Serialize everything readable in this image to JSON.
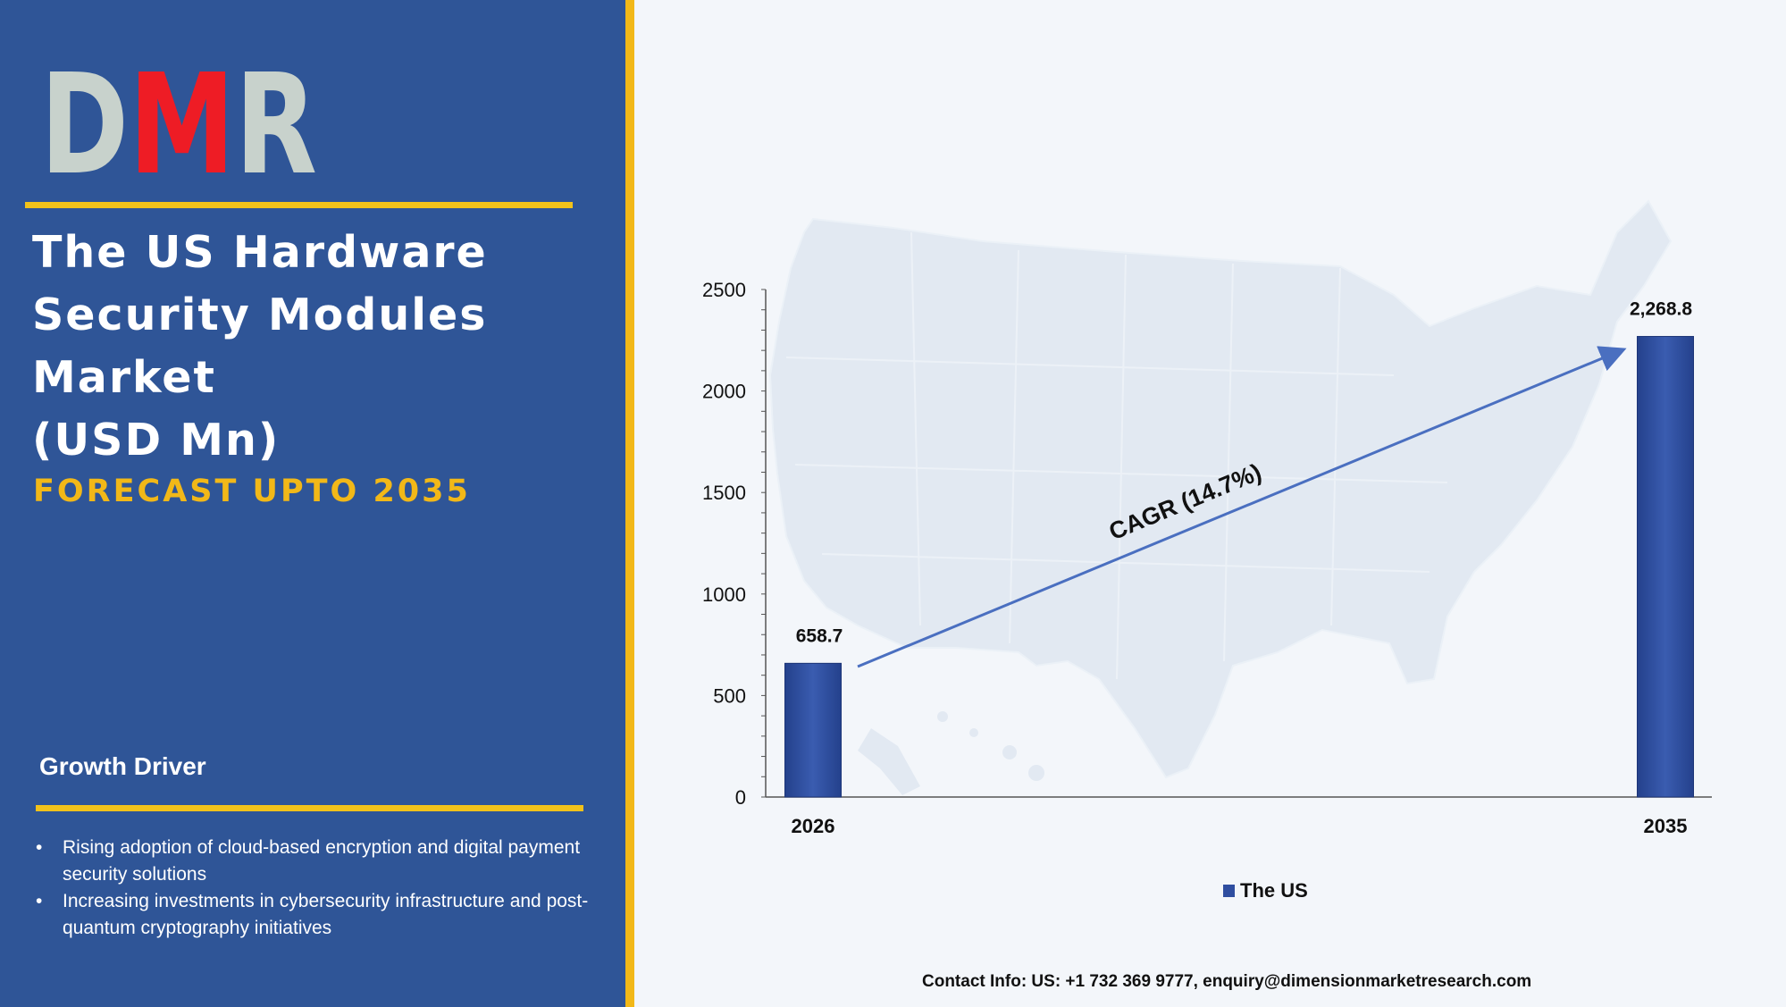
{
  "brand": {
    "logo_text": "DMR",
    "colors": {
      "red": "#ee1c25",
      "grey": "#c8d2cc",
      "gold": "#f2b818",
      "panel": "#2f5597",
      "bar": "#2f4ea0"
    }
  },
  "title": {
    "lines": [
      "The US Hardware",
      "Security Modules",
      "Market",
      "(USD Mn)"
    ],
    "subtitle": "FORECAST UPTO 2035"
  },
  "growth_driver": {
    "heading": "Growth Driver",
    "items": [
      "Rising adoption of cloud-based encryption and digital payment security solutions",
      "Increasing investments in cybersecurity infrastructure and post-quantum cryptography initiatives"
    ]
  },
  "chart_data": {
    "type": "bar",
    "categories": [
      "2026",
      "2035"
    ],
    "series": [
      {
        "name": "The US",
        "values": [
          658.7,
          2268.8
        ],
        "labels": [
          "658.7",
          "2,268.8"
        ]
      }
    ],
    "ylim": [
      0,
      2500
    ],
    "yticks": [
      0,
      500,
      1000,
      1500,
      2000,
      2500
    ],
    "xlabel": "",
    "ylabel": "",
    "annotation": "CAGR (14.7%)",
    "legend_position": "bottom",
    "grid": false,
    "background": "USA map silhouette"
  },
  "contact": "Contact Info: US: +1 732 369 9777, enquiry@dimensionmarketresearch.com"
}
